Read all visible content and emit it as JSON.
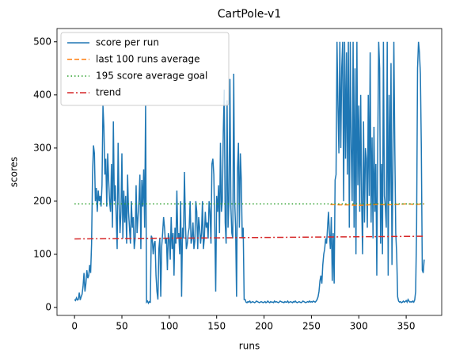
{
  "chart_data": {
    "type": "line",
    "title": "CartPole-v1",
    "xlabel": "runs",
    "ylabel": "scores",
    "xlim": [
      -18.5,
      387.5
    ],
    "ylim": [
      -15,
      525
    ],
    "xticks": [
      0,
      50,
      100,
      150,
      200,
      250,
      300,
      350
    ],
    "yticks": [
      0,
      100,
      200,
      300,
      400,
      500
    ],
    "legend": "upper left",
    "series": [
      {
        "name": "score per run",
        "color": "#1f77b4",
        "style": "solid",
        "x": [
          0,
          1,
          2,
          3,
          4,
          5,
          6,
          7,
          8,
          9,
          10,
          11,
          12,
          13,
          14,
          15,
          16,
          17,
          18,
          19,
          20,
          21,
          22,
          23,
          24,
          25,
          26,
          27,
          28,
          29,
          30,
          31,
          32,
          33,
          34,
          35,
          36,
          37,
          38,
          39,
          40,
          41,
          42,
          43,
          44,
          45,
          46,
          47,
          48,
          49,
          50,
          51,
          52,
          53,
          54,
          55,
          56,
          57,
          58,
          59,
          60,
          61,
          62,
          63,
          64,
          65,
          66,
          67,
          68,
          69,
          70,
          71,
          72,
          73,
          74,
          75,
          76,
          77,
          78,
          79,
          80,
          81,
          82,
          83,
          84,
          85,
          86,
          87,
          88,
          89,
          90,
          91,
          92,
          93,
          94,
          95,
          96,
          97,
          98,
          99,
          100,
          101,
          102,
          103,
          104,
          105,
          106,
          107,
          108,
          109,
          110,
          111,
          112,
          113,
          114,
          115,
          116,
          117,
          118,
          119,
          120,
          121,
          122,
          123,
          124,
          125,
          126,
          127,
          128,
          129,
          130,
          131,
          132,
          133,
          134,
          135,
          136,
          137,
          138,
          139,
          140,
          141,
          142,
          143,
          144,
          145,
          146,
          147,
          148,
          149,
          150,
          151,
          152,
          153,
          154,
          155,
          156,
          157,
          158,
          159,
          160,
          161,
          162,
          163,
          164,
          165,
          166,
          167,
          168,
          169,
          170,
          171,
          172,
          173,
          174,
          175,
          176,
          177,
          178,
          179,
          180,
          181,
          182,
          183,
          184,
          185,
          186,
          187,
          188,
          189,
          190,
          191,
          192,
          193,
          194,
          195,
          196,
          197,
          198,
          199,
          200,
          201,
          202,
          203,
          204,
          205,
          206,
          207,
          208,
          209,
          210,
          211,
          212,
          213,
          214,
          215,
          216,
          217,
          218,
          219,
          220,
          221,
          222,
          223,
          224,
          225,
          226,
          227,
          228,
          229,
          230,
          231,
          232,
          233,
          234,
          235,
          236,
          237,
          238,
          239,
          240,
          241,
          242,
          243,
          244,
          245,
          246,
          247,
          248,
          249,
          250,
          251,
          252,
          253,
          254,
          255,
          256,
          257,
          258,
          259,
          260,
          261,
          262,
          263,
          264,
          265,
          266,
          267,
          268,
          269,
          270,
          271,
          272,
          273,
          274,
          275,
          276,
          277,
          278,
          279,
          280,
          281,
          282,
          283,
          284,
          285,
          286,
          287,
          288,
          289,
          290,
          291,
          292,
          293,
          294,
          295,
          296,
          297,
          298,
          299,
          300,
          301,
          302,
          303,
          304,
          305,
          306,
          307,
          308,
          309,
          310,
          311,
          312,
          313,
          314,
          315,
          316,
          317,
          318,
          319,
          320,
          321,
          322,
          323,
          324,
          325,
          326,
          327,
          328,
          329,
          330,
          331,
          332,
          333,
          334,
          335,
          336,
          337,
          338,
          339,
          340,
          341,
          342,
          343,
          344,
          345,
          346,
          347,
          348,
          349,
          350,
          351,
          352,
          353,
          354,
          355,
          356,
          357,
          358,
          359,
          360,
          361,
          362,
          363,
          364,
          365,
          366,
          367,
          368,
          369
        ],
        "values": [
          15,
          13,
          18,
          14,
          15,
          28,
          14,
          20,
          25,
          40,
          65,
          30,
          45,
          70,
          55,
          60,
          80,
          65,
          120,
          250,
          305,
          290,
          200,
          225,
          180,
          220,
          200,
          210,
          190,
          230,
          380,
          340,
          250,
          280,
          190,
          290,
          240,
          200,
          180,
          270,
          150,
          350,
          200,
          230,
          170,
          110,
          310,
          200,
          140,
          180,
          290,
          130,
          220,
          160,
          210,
          120,
          250,
          180,
          150,
          120,
          200,
          150,
          170,
          110,
          130,
          230,
          140,
          170,
          200,
          250,
          110,
          240,
          190,
          260,
          150,
          380,
          10,
          12,
          8,
          11,
          10,
          135,
          130,
          100,
          120,
          125,
          60,
          30,
          15,
          110,
          130,
          20,
          115,
          140,
          170,
          150,
          120,
          130,
          70,
          140,
          130,
          90,
          170,
          110,
          140,
          60,
          150,
          120,
          220,
          130,
          140,
          100,
          200,
          20,
          150,
          130,
          255,
          160,
          110,
          120,
          140,
          150,
          200,
          120,
          130,
          160,
          110,
          125,
          200,
          180,
          110,
          170,
          150,
          120,
          140,
          200,
          110,
          130,
          180,
          150,
          160,
          130,
          200,
          180,
          120,
          270,
          280,
          250,
          150,
          30,
          210,
          180,
          230,
          140,
          310,
          180,
          200,
          330,
          410,
          160,
          120,
          390,
          150,
          200,
          430,
          190,
          140,
          130,
          440,
          200,
          150,
          20,
          260,
          310,
          150,
          290,
          240,
          130,
          150,
          15,
          15,
          10,
          9,
          11,
          10,
          12,
          9,
          10,
          11,
          10,
          9,
          10,
          12,
          11,
          10,
          9,
          10,
          11,
          10,
          9,
          10,
          11,
          9,
          10,
          12,
          10,
          9,
          11,
          10,
          10,
          9,
          12,
          10,
          11,
          10,
          9,
          10,
          12,
          11,
          10,
          10,
          9,
          11,
          10,
          10,
          12,
          9,
          10,
          11,
          10,
          9,
          11,
          10,
          12,
          10,
          9,
          10,
          11,
          10,
          9,
          10,
          12,
          11,
          10,
          9,
          10,
          11,
          10,
          12,
          10,
          11,
          10,
          12,
          11,
          10,
          12,
          15,
          20,
          30,
          50,
          60,
          45,
          80,
          100,
          110,
          130,
          120,
          150,
          180,
          140,
          110,
          170,
          50,
          140,
          45,
          240,
          250,
          500,
          380,
          290,
          500,
          300,
          450,
          500,
          200,
          500,
          280,
          480,
          250,
          500,
          150,
          500,
          300,
          200,
          500,
          150,
          450,
          100,
          500,
          230,
          380,
          180,
          400,
          200,
          100,
          350,
          160,
          300,
          280,
          150,
          400,
          210,
          480,
          160,
          320,
          130,
          340,
          180,
          270,
          60,
          300,
          500,
          450,
          120,
          270,
          100,
          500,
          210,
          190,
          150,
          500,
          60,
          400,
          200,
          460,
          80,
          260,
          500,
          300,
          140,
          100,
          20,
          12,
          10,
          11,
          9,
          10,
          12,
          10,
          11,
          13,
          10,
          15,
          12,
          10,
          11,
          10,
          12,
          10,
          14,
          30,
          150,
          450,
          500,
          480,
          440,
          300,
          70,
          65,
          90
        ]
      },
      {
        "name": "last 100 runs average",
        "color": "#ff7f0e",
        "style": "dashed",
        "x": [
          270,
          280,
          290,
          300,
          310,
          320,
          330,
          340,
          350,
          360,
          369
        ],
        "values": [
          194,
          193,
          193,
          192,
          193,
          194,
          193,
          194,
          195,
          194,
          195
        ]
      },
      {
        "name": "195 score average goal",
        "color": "#2ca02c",
        "style": "dotted",
        "x": [
          0,
          369
        ],
        "values": [
          195,
          195
        ]
      },
      {
        "name": "trend",
        "color": "#d62728",
        "style": "dashdot",
        "x": [
          0,
          369
        ],
        "values": [
          129,
          134
        ]
      }
    ]
  }
}
